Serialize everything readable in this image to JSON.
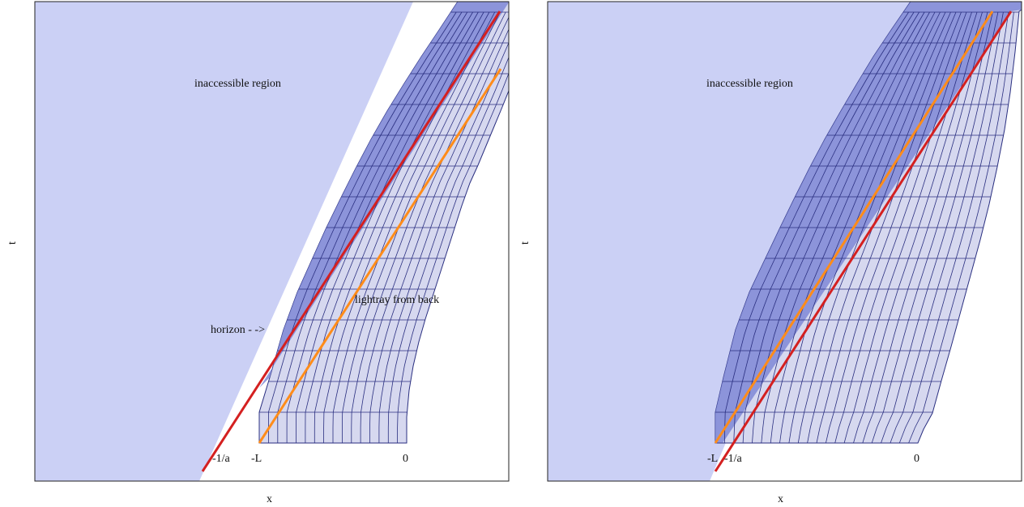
{
  "colors": {
    "inaccessible_fill": "#cbd0f5",
    "band_dark_fill": "#7f88d6",
    "band_light_fill": "#d6d8ef",
    "grid_line": "#2a2f80",
    "horizon_line": "#d42020",
    "lightray_line": "#ff8c1a"
  },
  "panels": [
    {
      "x_axis_label": "x",
      "y_axis_label": "t",
      "region_label": "inaccessible region",
      "horizon_label": "horizon - ->",
      "lightray_label": "lightray from back",
      "tick_minus_inv_a": "-1/a",
      "tick_minus_L": "-L",
      "tick_zero": "0"
    },
    {
      "x_axis_label": "x",
      "y_axis_label": "t",
      "region_label": "inaccessible region",
      "tick_minus_L": "-L",
      "tick_minus_inv_a": "-1/a",
      "tick_zero": "0"
    }
  ]
}
